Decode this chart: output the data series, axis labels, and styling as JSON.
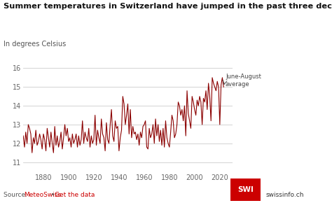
{
  "title": "Summer temperatures in Switzerland have jumped in the past three decades",
  "subtitle": "In degrees Celsius",
  "annotation_line1": "June-August",
  "annotation_line2": "average",
  "line_color": "#8B0000",
  "background_color": "#ffffff",
  "grid_color": "#cccccc",
  "ylim": [
    10.5,
    17.2
  ],
  "yticks": [
    11,
    12,
    13,
    14,
    15,
    16
  ],
  "xticks": [
    1880,
    1900,
    1920,
    1940,
    1960,
    1980,
    2000,
    2020
  ],
  "xlim": [
    1864,
    2030
  ],
  "source_text": "Source: ",
  "source_link1": "MeteoSwiss",
  "source_bullet": " • ",
  "source_link2": "Get the data",
  "logo_swi": "SWI",
  "logo_text": "swissinfo.ch",
  "logo_color": "#cc0000",
  "link_color": "#cc0000",
  "years": [
    1864,
    1865,
    1866,
    1867,
    1868,
    1869,
    1870,
    1871,
    1872,
    1873,
    1874,
    1875,
    1876,
    1877,
    1878,
    1879,
    1880,
    1881,
    1882,
    1883,
    1884,
    1885,
    1886,
    1887,
    1888,
    1889,
    1890,
    1891,
    1892,
    1893,
    1894,
    1895,
    1896,
    1897,
    1898,
    1899,
    1900,
    1901,
    1902,
    1903,
    1904,
    1905,
    1906,
    1907,
    1908,
    1909,
    1910,
    1911,
    1912,
    1913,
    1914,
    1915,
    1916,
    1917,
    1918,
    1919,
    1920,
    1921,
    1922,
    1923,
    1924,
    1925,
    1926,
    1927,
    1928,
    1929,
    1930,
    1931,
    1932,
    1933,
    1934,
    1935,
    1936,
    1937,
    1938,
    1939,
    1940,
    1941,
    1942,
    1943,
    1944,
    1945,
    1946,
    1947,
    1948,
    1949,
    1950,
    1951,
    1952,
    1953,
    1954,
    1955,
    1956,
    1957,
    1958,
    1959,
    1960,
    1961,
    1962,
    1963,
    1964,
    1965,
    1966,
    1967,
    1968,
    1969,
    1970,
    1971,
    1972,
    1973,
    1974,
    1975,
    1976,
    1977,
    1978,
    1979,
    1980,
    1981,
    1982,
    1983,
    1984,
    1985,
    1986,
    1987,
    1988,
    1989,
    1990,
    1991,
    1992,
    1993,
    1994,
    1995,
    1996,
    1997,
    1998,
    1999,
    2000,
    2001,
    2002,
    2003,
    2004,
    2005,
    2006,
    2007,
    2008,
    2009,
    2010,
    2011,
    2012,
    2013,
    2014,
    2015,
    2016,
    2017,
    2018,
    2019,
    2020,
    2021,
    2022,
    2023
  ],
  "temps": [
    12.4,
    11.8,
    12.6,
    12.0,
    13.0,
    12.8,
    12.5,
    11.5,
    12.3,
    12.0,
    12.7,
    11.9,
    12.1,
    12.5,
    12.2,
    11.7,
    12.5,
    12.2,
    11.6,
    12.8,
    12.3,
    11.8,
    12.6,
    12.0,
    11.5,
    12.9,
    11.9,
    12.4,
    11.8,
    12.1,
    12.6,
    11.7,
    12.3,
    13.0,
    12.4,
    12.8,
    12.1,
    12.3,
    11.8,
    12.5,
    12.0,
    12.2,
    12.5,
    11.8,
    12.4,
    11.9,
    12.2,
    13.2,
    12.0,
    12.6,
    12.3,
    12.1,
    12.8,
    11.8,
    12.4,
    12.0,
    12.2,
    13.5,
    11.9,
    12.7,
    12.3,
    12.0,
    13.3,
    12.5,
    12.3,
    11.6,
    13.1,
    12.2,
    12.0,
    13.0,
    13.8,
    12.4,
    12.1,
    13.2,
    12.8,
    12.9,
    11.6,
    12.3,
    12.7,
    14.5,
    14.1,
    13.0,
    13.5,
    14.1,
    12.5,
    13.8,
    12.3,
    12.9,
    12.5,
    12.6,
    12.2,
    12.5,
    11.9,
    12.6,
    12.3,
    12.9,
    13.0,
    13.2,
    11.8,
    11.7,
    12.8,
    12.3,
    12.5,
    13.0,
    12.0,
    13.3,
    12.4,
    13.0,
    12.1,
    12.7,
    11.9,
    12.8,
    11.8,
    13.2,
    12.3,
    12.0,
    11.8,
    12.6,
    13.5,
    13.2,
    12.3,
    12.5,
    13.0,
    14.2,
    14.0,
    13.5,
    13.8,
    13.2,
    14.0,
    12.4,
    14.8,
    13.6,
    13.2,
    12.8,
    14.5,
    14.2,
    13.8,
    13.5,
    14.3,
    14.0,
    14.5,
    14.2,
    13.0,
    14.4,
    14.2,
    14.8,
    13.8,
    15.2,
    14.5,
    13.2,
    15.5,
    15.2,
    15.0,
    14.8,
    15.3,
    15.0,
    13.0,
    15.1,
    15.5,
    15.0
  ]
}
